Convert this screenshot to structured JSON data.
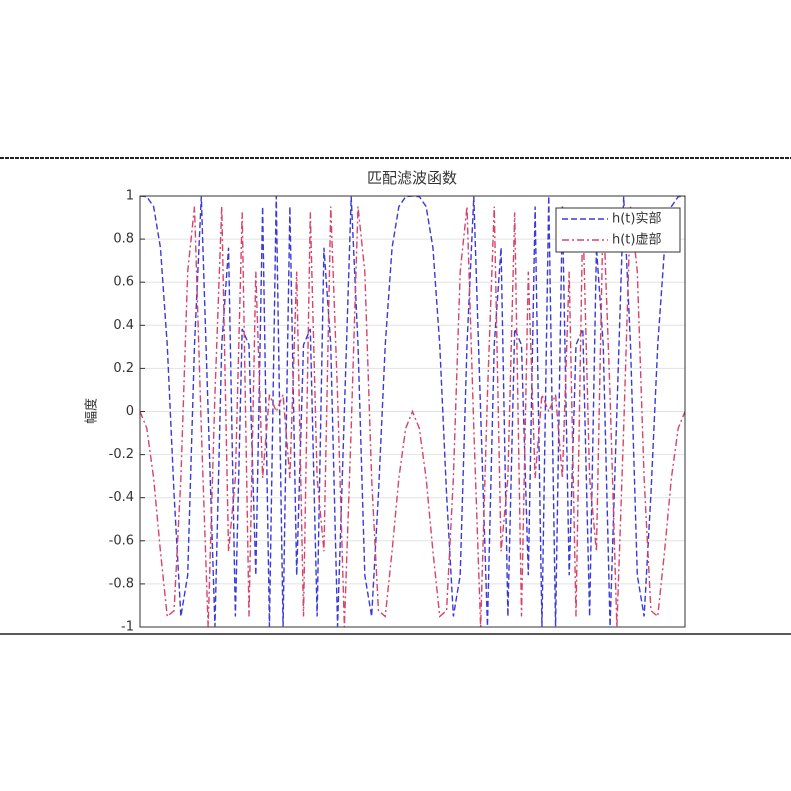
{
  "chart_data": {
    "type": "line",
    "title": "匹配滤波函数",
    "ylabel": "幅度",
    "x": [
      -1,
      -0.975,
      -0.95,
      -0.925,
      -0.9,
      -0.875,
      -0.85,
      -0.825,
      -0.8,
      -0.775,
      -0.75,
      -0.725,
      -0.7,
      -0.675,
      -0.65,
      -0.625,
      -0.6,
      -0.575,
      -0.55,
      -0.525,
      -0.5,
      -0.475,
      -0.45,
      -0.425,
      -0.4,
      -0.375,
      -0.35,
      -0.325,
      -0.3,
      -0.275,
      -0.25,
      -0.225,
      -0.2,
      -0.175,
      -0.15,
      -0.125,
      -0.1,
      -0.075,
      -0.05,
      -0.025,
      0,
      0.025,
      0.05,
      0.075,
      0.1,
      0.125,
      0.15,
      0.175,
      0.2,
      0.225,
      0.25,
      0.275,
      0.3,
      0.325,
      0.35,
      0.375,
      0.4,
      0.425,
      0.45,
      0.475,
      0.5,
      0.525,
      0.55,
      0.575,
      0.6,
      0.625,
      0.65,
      0.675,
      0.7,
      0.725,
      0.75,
      0.775,
      0.8,
      0.825,
      0.85,
      0.875,
      0.9,
      0.925,
      0.95,
      0.975,
      1
    ],
    "series": [
      {
        "name": "h(t)实部",
        "color": "#3a3ad8",
        "dash": "6,3",
        "values": [
          1,
          0.997,
          0.951,
          0.76,
          0.309,
          -0.383,
          -0.951,
          -0.76,
          0.309,
          0.997,
          0,
          -0.997,
          0.309,
          0.76,
          -0.951,
          0.383,
          0.309,
          -0.76,
          0.951,
          -0.997,
          1,
          -0.997,
          0.951,
          -0.76,
          0.309,
          0.383,
          -0.951,
          0.76,
          0.309,
          -0.997,
          0,
          0.997,
          0.309,
          -0.76,
          -0.951,
          -0.383,
          0.309,
          0.76,
          0.951,
          0.997,
          1,
          0.997,
          0.951,
          0.76,
          0.309,
          -0.383,
          -0.951,
          -0.76,
          0.309,
          0.997,
          0,
          -0.997,
          0.309,
          0.76,
          -0.951,
          0.383,
          0.309,
          -0.76,
          0.951,
          -0.997,
          1,
          -0.997,
          0.951,
          -0.76,
          0.309,
          0.383,
          -0.951,
          0.76,
          0.309,
          -0.997,
          0,
          0.997,
          0.309,
          -0.76,
          -0.951,
          -0.383,
          0.309,
          0.76,
          0.951,
          0.997,
          1
        ]
      },
      {
        "name": "h(t)虚部",
        "color": "#d8436a",
        "dash": "7,3,2,3",
        "values": [
          0,
          -0.078,
          -0.309,
          -0.649,
          -0.951,
          -0.924,
          -0.309,
          0.649,
          0.951,
          -0.078,
          -1,
          0.078,
          0.951,
          -0.649,
          -0.309,
          0.924,
          -0.951,
          0.649,
          -0.309,
          0.078,
          0,
          0.078,
          -0.309,
          0.649,
          -0.951,
          0.924,
          -0.309,
          -0.649,
          0.951,
          0.078,
          -1,
          -0.078,
          0.951,
          0.649,
          -0.309,
          -0.924,
          -0.951,
          -0.649,
          -0.309,
          -0.078,
          0,
          -0.078,
          -0.309,
          -0.649,
          -0.951,
          -0.924,
          -0.309,
          0.649,
          0.951,
          -0.078,
          -1,
          0.078,
          0.951,
          -0.649,
          -0.309,
          0.924,
          -0.951,
          0.649,
          -0.309,
          0.078,
          0,
          0.078,
          -0.309,
          0.649,
          -0.951,
          0.924,
          -0.309,
          -0.649,
          0.951,
          0.078,
          -1,
          -0.078,
          0.951,
          0.649,
          -0.309,
          -0.924,
          -0.951,
          -0.649,
          -0.309,
          -0.078,
          0
        ]
      }
    ],
    "xlim": [
      -1,
      1
    ],
    "ylim": [
      -1,
      1
    ],
    "yticks": [
      -1,
      -0.8,
      -0.6,
      -0.4,
      -0.2,
      0,
      0.2,
      0.4,
      0.6,
      0.8,
      1
    ],
    "grid": true,
    "legend": "upper right"
  }
}
